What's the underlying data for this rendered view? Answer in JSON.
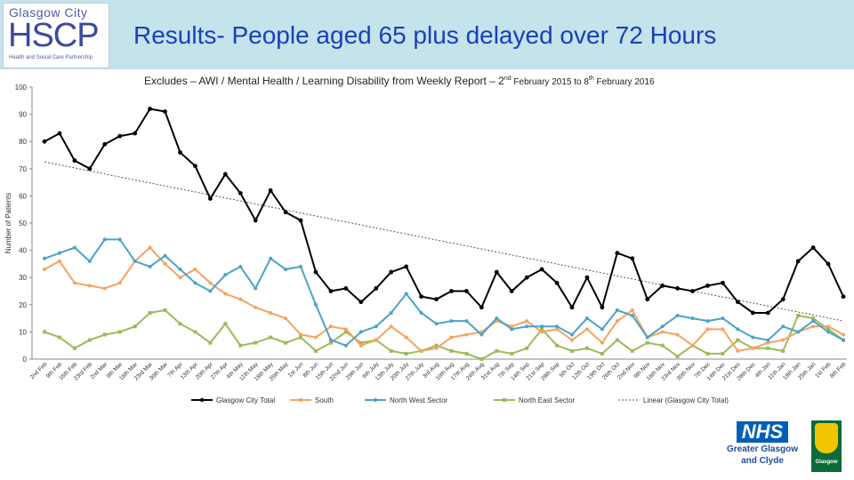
{
  "header": {
    "logo_top": "Glasgow City",
    "logo_main": "HSCP",
    "logo_sub": "Health and Social Care Partnership",
    "title": "Results- People aged 65 plus delayed over 72 Hours"
  },
  "subtitle": {
    "main": "Excludes – AWI / Mental Health / Learning Disability from Weekly Report – 2",
    "sup1": "nd",
    "mid": " February 2015 to 8",
    "sup2": "th",
    "end": " February 2016"
  },
  "chart_data": {
    "type": "line",
    "ylabel": "Number of Patients",
    "ylim": [
      0,
      100
    ],
    "yticks": [
      0,
      10,
      20,
      30,
      40,
      50,
      60,
      70,
      80,
      90,
      100
    ],
    "x": [
      "2nd Feb",
      "9th Feb",
      "16th Feb",
      "23rd Feb",
      "2nd Mar",
      "9th Mar",
      "16th Mar",
      "23rd Mar",
      "30th Mar",
      "7th Apr",
      "13th Apr",
      "20th Apr",
      "27th Apr",
      "4th May",
      "11th May",
      "18th May",
      "25th May",
      "1st Jun",
      "8th Jun",
      "15th Jun",
      "22nd Jun",
      "29th Jun",
      "6th July",
      "13th July",
      "20th July",
      "27th July",
      "3rd Aug",
      "10th Aug",
      "17th Aug",
      "24th Aug",
      "31st Aug",
      "7th Sep",
      "14th Sep",
      "21st Sep",
      "28th Sep",
      "5th Oct",
      "12th Oct",
      "19th Oct",
      "26th Oct",
      "2nd Nov",
      "9th Nov",
      "16th Nov",
      "23rd Nov",
      "30th Nov",
      "7th Dec",
      "14th Dec",
      "21st Dec",
      "28th Dec",
      "4th Jan",
      "11th Jan",
      "18th Jan",
      "25th Jan",
      "1st Feb",
      "8th Feb"
    ],
    "series": [
      {
        "name": "Glasgow City Total",
        "color": "#000000",
        "values": [
          80,
          83,
          73,
          70,
          79,
          82,
          83,
          92,
          91,
          76,
          71,
          59,
          68,
          61,
          51,
          62,
          54,
          51,
          32,
          25,
          26,
          21,
          26,
          32,
          34,
          23,
          22,
          25,
          25,
          19,
          32,
          25,
          30,
          33,
          28,
          19,
          30,
          19,
          39,
          37,
          22,
          27,
          26,
          25,
          27,
          28,
          21,
          17,
          17,
          22,
          36,
          41,
          35,
          23
        ]
      },
      {
        "name": "South",
        "color": "#f4a460",
        "values": [
          33,
          36,
          28,
          27,
          26,
          28,
          36,
          41,
          35,
          30,
          33,
          28,
          24,
          22,
          19,
          17,
          15,
          9,
          8,
          12,
          11,
          5,
          7,
          12,
          8,
          3,
          4,
          8,
          9,
          10,
          14,
          12,
          14,
          10,
          11,
          7,
          11,
          6,
          14,
          18,
          8,
          10,
          9,
          5,
          11,
          11,
          3,
          4,
          6,
          7,
          10,
          12,
          12,
          9
        ]
      },
      {
        "name": "North West Sector",
        "color": "#4aa3c8",
        "values": [
          37,
          39,
          41,
          36,
          44,
          44,
          36,
          34,
          38,
          33,
          28,
          25,
          31,
          34,
          26,
          37,
          33,
          34,
          20,
          7,
          5,
          10,
          12,
          17,
          24,
          17,
          13,
          14,
          14,
          9,
          15,
          11,
          12,
          12,
          12,
          9,
          15,
          11,
          18,
          16,
          8,
          12,
          16,
          15,
          14,
          15,
          11,
          8,
          7,
          12,
          10,
          14,
          10,
          7
        ]
      },
      {
        "name": "North East Sector",
        "color": "#9bbb59",
        "values": [
          10,
          8,
          4,
          7,
          9,
          10,
          12,
          17,
          18,
          13,
          10,
          6,
          13,
          5,
          6,
          8,
          6,
          8,
          3,
          6,
          10,
          6,
          7,
          3,
          2,
          3,
          5,
          3,
          2,
          0,
          3,
          2,
          4,
          11,
          5,
          3,
          4,
          2,
          7,
          3,
          6,
          5,
          1,
          5,
          2,
          2,
          7,
          4,
          4,
          3,
          16,
          15,
          11,
          7
        ]
      }
    ],
    "trendline": {
      "name": "Linear (Glasgow City Total)",
      "start": 72.5,
      "end": 14
    },
    "legend": [
      "Glasgow City Total",
      "South",
      "North West Sector",
      "North East Sector",
      "Linear (Glasgow City Total)"
    ]
  },
  "footer": {
    "nhs_logo": "NHS",
    "nhs_line1": "Greater Glasgow",
    "nhs_line2": "and Clyde",
    "council_name": "Glasgow"
  }
}
